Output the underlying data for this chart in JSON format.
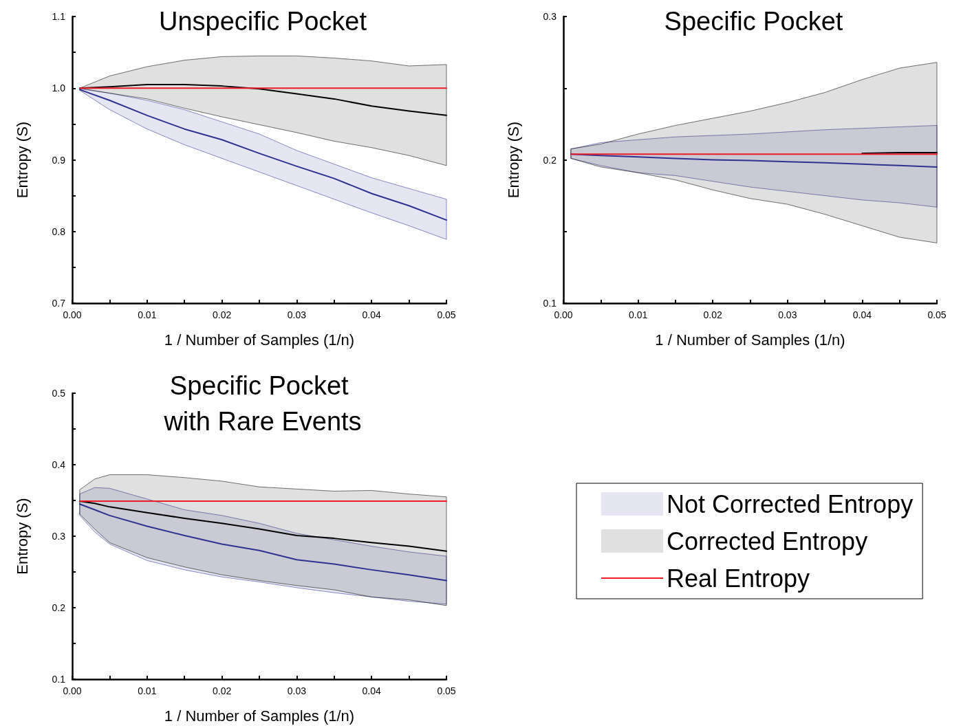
{
  "chart_data": [
    {
      "type": "line",
      "title": "Unspecific Pocket",
      "xlabel": "1 / Number of Samples (1/n)",
      "ylabel": "Entropy (S)",
      "grid": false,
      "marker": "none",
      "line_style": "solid",
      "xlim": [
        0,
        0.05
      ],
      "ylim": [
        0.7,
        1.1
      ],
      "xticks": [
        {
          "value": 0,
          "label": "0.00"
        },
        {
          "value": 0.005,
          "label": null
        },
        0.01,
        {
          "value": 0.015,
          "label": null
        },
        0.02,
        {
          "value": 0.025,
          "label": null
        },
        0.03,
        {
          "value": 0.035,
          "label": null
        },
        0.04,
        {
          "value": 0.045,
          "label": null
        },
        0.05
      ],
      "yticks": [
        0.7,
        {
          "value": 0.75,
          "label": null
        },
        0.8,
        {
          "value": 0.85,
          "label": null
        },
        0.9,
        {
          "value": 0.95,
          "label": null
        },
        {
          "value": 1,
          "label": "1.0"
        },
        {
          "value": 1.05,
          "label": null
        },
        1.1
      ],
      "series": [
        {
          "color": "#2e3192",
          "x": [
            0.001,
            0.005,
            0.01,
            0.015,
            0.02,
            0.025,
            0.03,
            0.035,
            0.04,
            0.045,
            0.05
          ],
          "values": [
            0.998,
            0.983,
            0.962,
            0.943,
            0.928,
            0.909,
            0.891,
            0.874,
            0.853,
            0.836,
            0.816
          ],
          "lower": [
            0.997,
            0.97,
            0.943,
            0.921,
            0.902,
            0.883,
            0.864,
            0.845,
            0.826,
            0.808,
            0.789
          ],
          "upper": [
            0.999,
            0.993,
            0.983,
            0.97,
            0.953,
            0.936,
            0.913,
            0.894,
            0.875,
            0.86,
            0.845
          ]
        },
        {
          "color": "#000000",
          "x": [
            0.001,
            0.005,
            0.01,
            0.015,
            0.02,
            0.025,
            0.03,
            0.035,
            0.04,
            0.045,
            0.05
          ],
          "values": [
            1.0,
            1.002,
            1.005,
            1.005,
            1.003,
            0.999,
            0.992,
            0.985,
            0.975,
            0.968,
            0.962
          ],
          "lower": [
            1.0,
            0.993,
            0.985,
            0.972,
            0.96,
            0.949,
            0.938,
            0.926,
            0.917,
            0.906,
            0.892
          ],
          "upper": [
            1.0,
            1.017,
            1.03,
            1.039,
            1.044,
            1.045,
            1.045,
            1.042,
            1.038,
            1.031,
            1.033
          ]
        },
        {
          "color": "#ed1c24",
          "x": [
            0.001,
            0.05
          ],
          "values": [
            1.0,
            1.0
          ]
        }
      ]
    },
    {
      "type": "line",
      "title": "Specific Pocket",
      "xlabel": "1 / Number of Samples (1/n)",
      "ylabel": "Entropy (S)",
      "grid": false,
      "marker": "none",
      "line_style": "solid",
      "xlim": [
        0,
        0.05
      ],
      "ylim": [
        0.1,
        0.3
      ],
      "xticks": [
        {
          "value": 0,
          "label": "0.00"
        },
        {
          "value": 0.005,
          "label": null
        },
        0.01,
        {
          "value": 0.015,
          "label": null
        },
        0.02,
        {
          "value": 0.025,
          "label": null
        },
        0.03,
        {
          "value": 0.035,
          "label": null
        },
        0.04,
        {
          "value": 0.045,
          "label": null
        },
        0.05
      ],
      "yticks": [
        0.1,
        {
          "value": 0.15,
          "label": null
        },
        0.2,
        {
          "value": 0.25,
          "label": null
        },
        0.3
      ],
      "series": [
        {
          "color": "#2e3192",
          "x": [
            0.001,
            0.005,
            0.01,
            0.015,
            0.02,
            0.025,
            0.03,
            0.035,
            0.04,
            0.045,
            0.05
          ],
          "values": [
            0.204,
            0.203,
            0.202,
            0.201,
            0.2,
            0.1995,
            0.1987,
            0.198,
            0.197,
            0.196,
            0.195
          ],
          "lower": [
            0.201,
            0.196,
            0.191,
            0.189,
            0.185,
            0.181,
            0.178,
            0.175,
            0.172,
            0.17,
            0.167
          ],
          "upper": [
            0.2076,
            0.212,
            0.214,
            0.216,
            0.217,
            0.218,
            0.2195,
            0.221,
            0.222,
            0.223,
            0.224
          ]
        },
        {
          "color": "#000000",
          "x": [
            0.001,
            0.005,
            0.01,
            0.015,
            0.02,
            0.025,
            0.03,
            0.035,
            0.04,
            0.045,
            0.05
          ],
          "values": [
            null,
            null,
            null,
            null,
            null,
            null,
            null,
            null,
            0.2045,
            0.205,
            0.205
          ],
          "lower": [
            0.201,
            0.195,
            0.191,
            0.186,
            0.179,
            0.173,
            0.169,
            0.162,
            0.154,
            0.146,
            0.142
          ],
          "upper": [
            0.2076,
            0.211,
            0.218,
            0.224,
            0.229,
            0.234,
            0.24,
            0.247,
            0.256,
            0.264,
            0.268
          ]
        },
        {
          "color": "#ed1c24",
          "x": [
            0.001,
            0.05
          ],
          "values": [
            0.204,
            0.204
          ]
        }
      ]
    },
    {
      "type": "line",
      "title": "Specific Pocket with Rare Events",
      "xlabel": "1 / Number of Samples (1/n)",
      "ylabel": "Entropy (S)",
      "grid": false,
      "marker": "none",
      "line_style": "solid",
      "legend": "right",
      "xlim": [
        0,
        0.05
      ],
      "ylim": [
        0.1,
        0.5
      ],
      "xticks": [
        {
          "value": 0,
          "label": "0.00"
        },
        {
          "value": 0.005,
          "label": null
        },
        0.01,
        {
          "value": 0.015,
          "label": null
        },
        0.02,
        {
          "value": 0.025,
          "label": null
        },
        0.03,
        {
          "value": 0.035,
          "label": null
        },
        0.04,
        {
          "value": 0.045,
          "label": null
        },
        0.05
      ],
      "yticks": [
        0.1,
        {
          "value": 0.15,
          "label": null
        },
        0.2,
        {
          "value": 0.25,
          "label": null
        },
        0.3,
        {
          "value": 0.35,
          "label": null
        },
        0.4,
        {
          "value": 0.45,
          "label": null
        },
        0.5
      ],
      "series": [
        {
          "name": "Not Corrected Entropy",
          "color": "#2e3192",
          "x": [
            0.001,
            0.003,
            0.005,
            0.01,
            0.015,
            0.02,
            0.025,
            0.03,
            0.035,
            0.04,
            0.045,
            0.05
          ],
          "values": [
            0.345,
            0.337,
            0.329,
            0.314,
            0.301,
            0.289,
            0.28,
            0.267,
            0.261,
            0.253,
            0.246,
            0.238
          ],
          "lower": [
            0.329,
            0.306,
            0.289,
            0.266,
            0.253,
            0.243,
            0.236,
            0.228,
            0.221,
            0.215,
            0.209,
            0.205
          ],
          "upper": [
            0.359,
            0.368,
            0.367,
            0.352,
            0.337,
            0.329,
            0.318,
            0.304,
            0.295,
            0.286,
            0.278,
            0.272
          ]
        },
        {
          "name": "Corrected Entropy",
          "color": "#000000",
          "x": [
            0.001,
            0.003,
            0.005,
            0.01,
            0.015,
            0.02,
            0.025,
            0.03,
            0.035,
            0.04,
            0.045,
            0.05
          ],
          "values": [
            0.349,
            0.346,
            0.341,
            0.333,
            0.325,
            0.318,
            0.31,
            0.301,
            0.297,
            0.291,
            0.286,
            0.279
          ],
          "lower": [
            0.331,
            0.31,
            0.291,
            0.27,
            0.257,
            0.246,
            0.238,
            0.231,
            0.225,
            0.215,
            0.211,
            0.203
          ],
          "upper": [
            0.365,
            0.38,
            0.386,
            0.386,
            0.382,
            0.377,
            0.369,
            0.366,
            0.363,
            0.364,
            0.359,
            0.355
          ]
        },
        {
          "name": "Real Entropy",
          "color": "#ed1c24",
          "x": [
            0.001,
            0.05
          ],
          "values": [
            0.349,
            0.349
          ]
        }
      ]
    }
  ]
}
